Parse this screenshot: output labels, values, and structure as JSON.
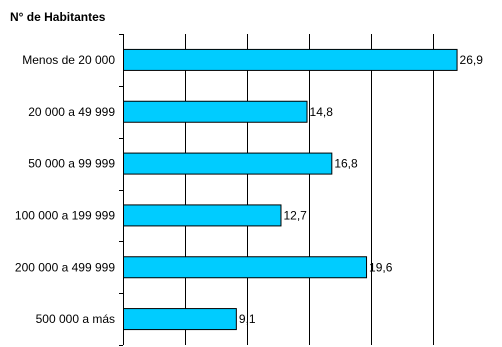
{
  "chart_data": {
    "type": "bar",
    "orientation": "horizontal",
    "title": "N° de Habitantes",
    "xlabel": "",
    "ylabel": "",
    "categories": [
      "Menos de 20 000",
      "20 000 a 49 999",
      "50 000 a 99 999",
      "100 000 a 199 999",
      "200 000 a 499 999",
      "500 000 a más"
    ],
    "values": [
      26.9,
      14.8,
      16.8,
      12.7,
      19.6,
      9.1
    ],
    "value_labels": [
      "26,9",
      "14,8",
      "16,8",
      "12,7",
      "19,6",
      "9,1"
    ],
    "xlim": [
      0,
      30
    ],
    "grid": "vertical",
    "legend": "none",
    "bar_color": "#00ccff",
    "bar_border_color": "#000000"
  }
}
